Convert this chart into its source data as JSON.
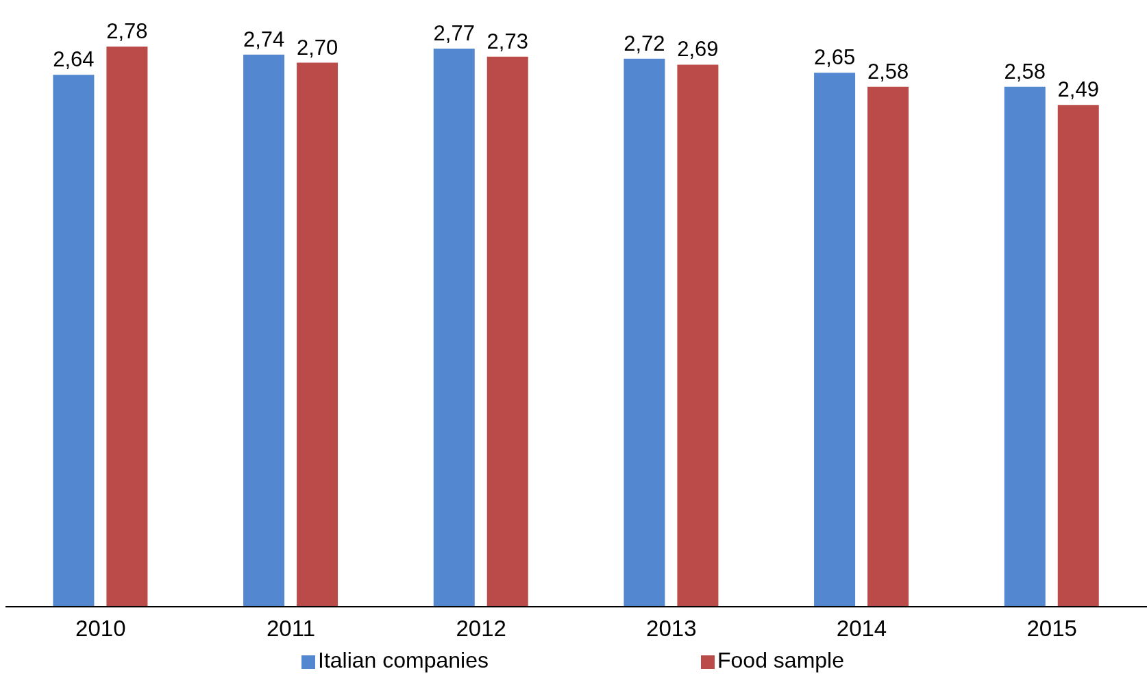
{
  "chart_data": {
    "type": "bar",
    "categories": [
      "2010",
      "2011",
      "2012",
      "2013",
      "2014",
      "2015"
    ],
    "series": [
      {
        "name": "Italian companies",
        "color": "#5388d0",
        "values": [
          2.64,
          2.74,
          2.77,
          2.72,
          2.65,
          2.58
        ],
        "value_labels": [
          "2,64",
          "2,74",
          "2,77",
          "2,72",
          "2,65",
          "2,58"
        ]
      },
      {
        "name": "Food sample",
        "color": "#bb4b49",
        "values": [
          2.78,
          2.7,
          2.73,
          2.69,
          2.58,
          2.49
        ],
        "value_labels": [
          "2,78",
          "2,70",
          "2,73",
          "2,69",
          "2,58",
          "2,49"
        ]
      }
    ],
    "grid": false,
    "legend": "bottom"
  }
}
